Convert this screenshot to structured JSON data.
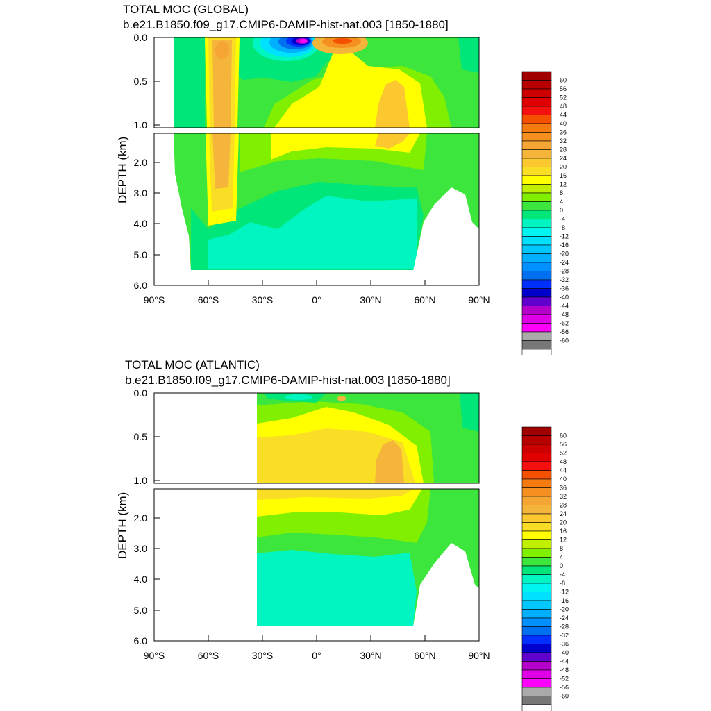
{
  "chart_data": [
    {
      "type": "heatmap",
      "title": "TOTAL MOC (GLOBAL)",
      "subtitle": "b.e21.B1850.f09_g17.CMIP6-DAMIP-hist-nat.003 [1850-1880]",
      "xlabel": "",
      "ylabel": "DEPTH (km)",
      "xlim": [
        -90,
        90
      ],
      "ylim": [
        6.0,
        0.0
      ],
      "x_ticks": [
        "90°S",
        "60°S",
        "30°S",
        "0°",
        "30°N",
        "60°N",
        "90°N"
      ],
      "y_ticks_upper": [
        "0.0",
        "0.5",
        "1.0"
      ],
      "y_ticks_lower": [
        "2.0",
        "3.0",
        "4.0",
        "5.0",
        "6.0"
      ],
      "colorbar_labels": [
        "60",
        "56",
        "52",
        "48",
        "44",
        "40",
        "36",
        "32",
        "28",
        "24",
        "20",
        "16",
        "12",
        "8",
        "4",
        "0",
        "-4",
        "-8",
        "-12",
        "-16",
        "-20",
        "-24",
        "-28",
        "-32",
        "-36",
        "-40",
        "-44",
        "-48",
        "-52",
        "-56",
        "-60"
      ],
      "features": [
        {
          "name": "southern-cell",
          "lat": [
            -58,
            -42
          ],
          "depth": [
            0.1,
            3.4
          ],
          "value": 24
        },
        {
          "name": "southern-cell-core",
          "lat": [
            -54,
            -46
          ],
          "depth": [
            0.1,
            2.6
          ],
          "value": 28
        },
        {
          "name": "northern-overturning",
          "lat": [
            -20,
            60
          ],
          "depth": [
            0.1,
            2.2
          ],
          "value": 16
        },
        {
          "name": "northern-core",
          "lat": [
            30,
            50
          ],
          "depth": [
            0.5,
            1.3
          ],
          "value": 24
        },
        {
          "name": "surface-negative-cell",
          "lat": [
            -30,
            0
          ],
          "depth": [
            0,
            0.35
          ],
          "value": -60
        },
        {
          "name": "surface-positive-cell",
          "lat": [
            0,
            25
          ],
          "depth": [
            0,
            0.15
          ],
          "value": 30
        },
        {
          "name": "abyssal-cell",
          "lat": [
            -70,
            55
          ],
          "depth": [
            3.2,
            5.5
          ],
          "value": -4
        }
      ]
    },
    {
      "type": "heatmap",
      "title": "TOTAL MOC (ATLANTIC)",
      "subtitle": "b.e21.B1850.f09_g17.CMIP6-DAMIP-hist-nat.003 [1850-1880]",
      "xlabel": "",
      "ylabel": "DEPTH (km)",
      "xlim": [
        -90,
        90
      ],
      "ylim": [
        6.0,
        0.0
      ],
      "x_ticks": [
        "90°S",
        "60°S",
        "30°S",
        "0°",
        "30°N",
        "60°N",
        "90°N"
      ],
      "y_ticks_upper": [
        "0.0",
        "0.5",
        "1.0"
      ],
      "y_ticks_lower": [
        "2.0",
        "3.0",
        "4.0",
        "5.0",
        "6.0"
      ],
      "colorbar_labels": [
        "60",
        "56",
        "52",
        "48",
        "44",
        "40",
        "36",
        "32",
        "28",
        "24",
        "20",
        "16",
        "12",
        "8",
        "4",
        "0",
        "-4",
        "-8",
        "-12",
        "-16",
        "-20",
        "-24",
        "-28",
        "-32",
        "-36",
        "-40",
        "-44",
        "-48",
        "-52",
        "-56",
        "-60"
      ],
      "features": [
        {
          "name": "amoc-cell",
          "lat": [
            -34,
            60
          ],
          "depth": [
            0.2,
            2.3
          ],
          "value": 16
        },
        {
          "name": "amoc-core",
          "lat": [
            32,
            48
          ],
          "depth": [
            0.6,
            1.1
          ],
          "value": 24
        },
        {
          "name": "surface-negative-cell",
          "lat": [
            -30,
            0
          ],
          "depth": [
            0,
            0.1
          ],
          "value": -8
        },
        {
          "name": "abyssal-cell",
          "lat": [
            -34,
            55
          ],
          "depth": [
            3.0,
            5.5
          ],
          "value": -4
        }
      ]
    }
  ],
  "colors": {
    "levels": [
      "#a00000",
      "#b70000",
      "#cc0000",
      "#e00000",
      "#f51010",
      "#f55000",
      "#f57b10",
      "#f59020",
      "#f5a533",
      "#f5b43a",
      "#fcc830",
      "#fadd25",
      "#ffff00",
      "#c0f000",
      "#80f000",
      "#3ce63c",
      "#00e678",
      "#00f5c0",
      "#00f5f0",
      "#00e0ff",
      "#00c8ff",
      "#00b0ff",
      "#0090ff",
      "#0070f0",
      "#0030ff",
      "#0000cc",
      "#6000cc",
      "#b400c8",
      "#e000e8",
      "#ff00ff",
      "#aaaaaa",
      "#777777",
      "#ffffff"
    ],
    "background": "#ffffff"
  }
}
